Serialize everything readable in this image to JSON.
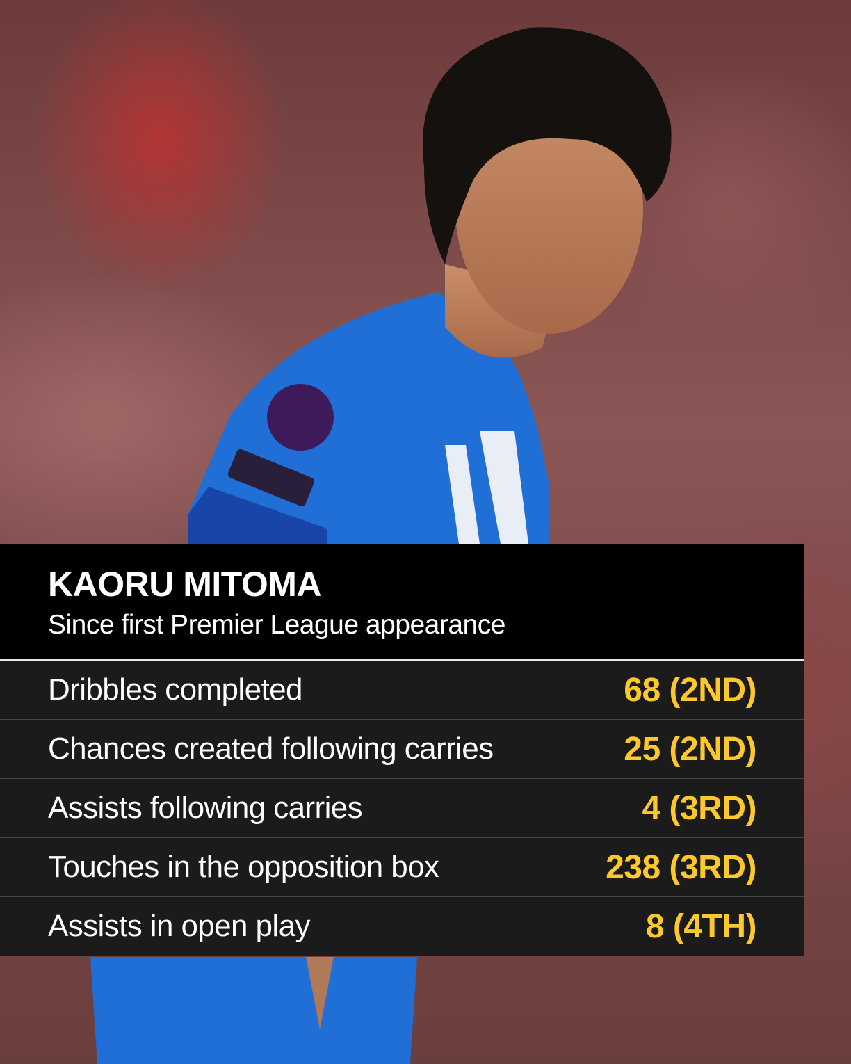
{
  "header": {
    "title": "KAORU MITOMA",
    "subtitle": "Since first Premier League appearance"
  },
  "stats": [
    {
      "label": "Dribbles completed",
      "value": "68 (2ND)"
    },
    {
      "label": "Chances created following carries",
      "value": "25 (2ND)"
    },
    {
      "label": "Assists following carries",
      "value": "4 (3RD)"
    },
    {
      "label": "Touches in the opposition box",
      "value": "238 (3RD)"
    },
    {
      "label": "Assists in open play",
      "value": "8 (4TH)"
    }
  ],
  "colors": {
    "value_accent": "#fdc82b",
    "header_bg": "#000000",
    "row_bg": "#1b1b1b",
    "shirt": "#1f6fd6"
  },
  "photo": {
    "subject": "player-photo"
  }
}
